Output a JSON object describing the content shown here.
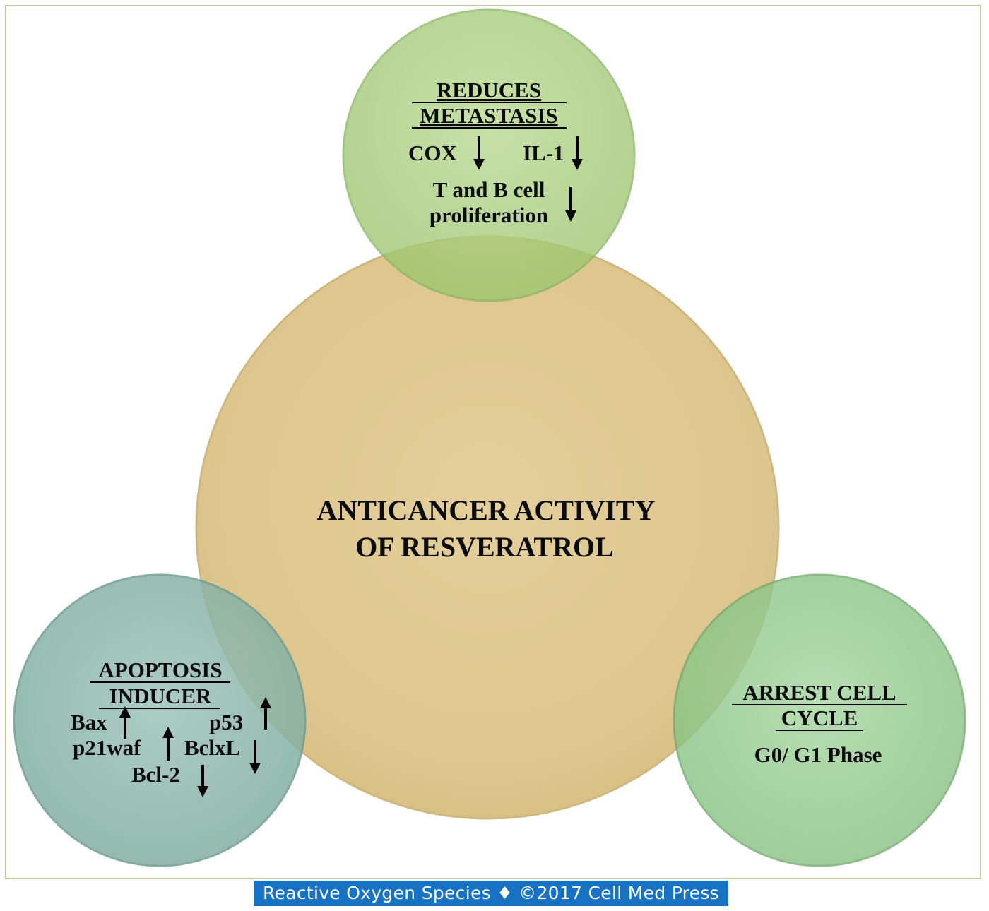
{
  "center": {
    "line1": "ANTICANCER ACTIVITY",
    "line2": "OF RESVERATROL"
  },
  "top": {
    "title1": "REDUCES",
    "title2": "METASTASIS",
    "cox": "COX",
    "il1": "IL-1",
    "tb1": "T and B cell",
    "tb2": "proliferation"
  },
  "left": {
    "title1": "APOPTOSIS",
    "title2": "INDUCER",
    "bax": "Bax",
    "p53": "p53",
    "p21waf": "p21waf",
    "bclxl": "BclxL",
    "bcl2": "Bcl-2"
  },
  "right": {
    "title1": "ARREST CELL",
    "title2": "CYCLE",
    "phase": "G0/ G1 Phase"
  },
  "footer": "Reactive Oxygen Species ♦ ©2017 Cell Med Press",
  "colors": {
    "center_circle": "#dfc68e",
    "top_circle": "#a9cf7e",
    "left_circle": "#8cb7ad",
    "right_circle": "#8fc98b",
    "footer_bg": "#1872c4"
  }
}
